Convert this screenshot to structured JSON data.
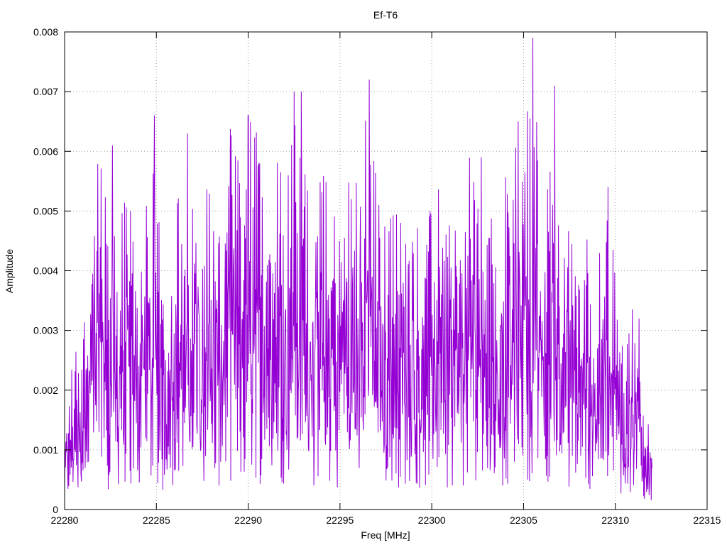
{
  "chart_data": {
    "type": "line",
    "title": "Ef-T6",
    "xlabel": "Freq [MHz]",
    "ylabel": "Amplitude",
    "xlim": [
      22280,
      22315
    ],
    "ylim": [
      0,
      0.008
    ],
    "x_ticks": [
      22280,
      22285,
      22290,
      22295,
      22300,
      22305,
      22310,
      22315
    ],
    "y_ticks": [
      0,
      0.001,
      0.002,
      0.003,
      0.004,
      0.005,
      0.006,
      0.007,
      0.008
    ],
    "x_tick_labels": [
      "22280",
      "22285",
      "22290",
      "22295",
      "22300",
      "22305",
      "22310",
      "22315"
    ],
    "y_tick_labels": [
      "0",
      "0.001",
      "0.002",
      "0.003",
      "0.004",
      "0.005",
      "0.006",
      "0.007",
      "0.008"
    ],
    "grid": true,
    "legend": "none",
    "series": [
      {
        "color": "#9400d3",
        "x": [
          22280.0,
          22280.5,
          22281.0,
          22281.5,
          22282.0,
          22282.5,
          22283.0,
          22283.5,
          22284.0,
          22284.5,
          22285.0,
          22285.5,
          22286.0,
          22286.5,
          22287.0,
          22287.5,
          22288.0,
          22288.5,
          22289.0,
          22289.5,
          22290.0,
          22290.5,
          22291.0,
          22291.5,
          22292.0,
          22292.5,
          22293.0,
          22293.5,
          22294.0,
          22294.5,
          22295.0,
          22295.5,
          22296.0,
          22296.5,
          22297.0,
          22297.5,
          22298.0,
          22298.5,
          22299.0,
          22299.5,
          22300.0,
          22300.5,
          22301.0,
          22301.5,
          22302.0,
          22302.5,
          22303.0,
          22303.5,
          22304.0,
          22304.5,
          22305.0,
          22305.5,
          22306.0,
          22306.5,
          22307.0,
          22307.5,
          22308.0,
          22308.5,
          22309.0,
          22309.5,
          22310.0,
          22310.5,
          22311.0,
          22311.5,
          22312.0
        ],
        "y": [
          0.0009,
          0.0019,
          0.0022,
          0.0035,
          0.0041,
          0.0029,
          0.0034,
          0.0038,
          0.0027,
          0.0042,
          0.0036,
          0.0023,
          0.0039,
          0.0031,
          0.0035,
          0.0042,
          0.0037,
          0.0033,
          0.0044,
          0.0039,
          0.0045,
          0.0043,
          0.0041,
          0.0046,
          0.0038,
          0.0044,
          0.0041,
          0.0035,
          0.0039,
          0.0036,
          0.0034,
          0.004,
          0.0043,
          0.0045,
          0.0038,
          0.0032,
          0.0036,
          0.0033,
          0.0035,
          0.0031,
          0.0034,
          0.0038,
          0.0036,
          0.0032,
          0.0039,
          0.0043,
          0.0035,
          0.0031,
          0.0038,
          0.0041,
          0.0045,
          0.0048,
          0.0043,
          0.0039,
          0.0036,
          0.0033,
          0.0029,
          0.0031,
          0.0027,
          0.0033,
          0.0029,
          0.0021,
          0.0023,
          0.0013,
          0.0008
        ],
        "peaks": [
          [
            22282.6,
            0.0061
          ],
          [
            22284.9,
            0.0066
          ],
          [
            22286.7,
            0.0063
          ],
          [
            22290.0,
            0.0066
          ],
          [
            22292.5,
            0.007
          ],
          [
            22292.9,
            0.007
          ],
          [
            22296.6,
            0.0072
          ],
          [
            22304.7,
            0.0065
          ],
          [
            22305.5,
            0.0079
          ],
          [
            22306.7,
            0.0071
          ],
          [
            22309.6,
            0.0054
          ],
          [
            22311.3,
            0.0032
          ]
        ]
      }
    ]
  }
}
